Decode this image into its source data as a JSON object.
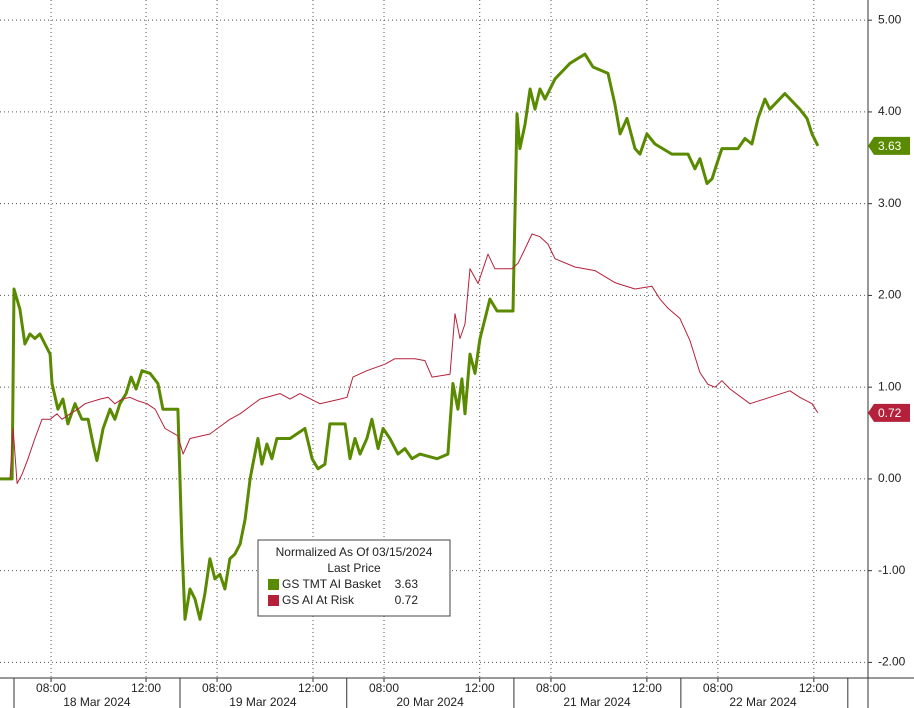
{
  "chart_data": {
    "type": "line",
    "legend_title": "Normalized As Of 03/15/2024",
    "legend_subtitle": "Last Price",
    "xlim": [
      0,
      36.55
    ],
    "ylim": [
      -2.17,
      5.22
    ],
    "yticks": [
      {
        "value": 5,
        "label": "5.00"
      },
      {
        "value": 4,
        "label": "4.00"
      },
      {
        "value": 3,
        "label": "3.00"
      },
      {
        "value": 2,
        "label": "2.00"
      },
      {
        "value": 1,
        "label": "1.00"
      },
      {
        "value": 0,
        "label": "0.00"
      },
      {
        "value": -1,
        "label": "-1.00"
      },
      {
        "value": -2,
        "label": "-2.00"
      }
    ],
    "xticks": [
      {
        "value": 2.15,
        "label": "08:00"
      },
      {
        "value": 6.15,
        "label": "12:00"
      },
      {
        "value": 9.14,
        "label": "08:00"
      },
      {
        "value": 13.18,
        "label": "12:00"
      },
      {
        "value": 16.17,
        "label": "08:00"
      },
      {
        "value": 20.2,
        "label": "12:00"
      },
      {
        "value": 23.2,
        "label": "08:00"
      },
      {
        "value": 27.24,
        "label": "12:00"
      },
      {
        "value": 30.23,
        "label": "08:00"
      },
      {
        "value": 34.27,
        "label": "12:00"
      }
    ],
    "day_boundaries": [
      0.59,
      7.58,
      14.6,
      21.64,
      28.67,
      35.7
    ],
    "date_ticks": [
      {
        "value": 4.08,
        "label": "18 Mar 2024"
      },
      {
        "value": 11.07,
        "label": "19 Mar 2024"
      },
      {
        "value": 18.11,
        "label": "20 Mar 2024"
      },
      {
        "value": 25.14,
        "label": "21 Mar 2024"
      },
      {
        "value": 32.13,
        "label": "22 Mar 2024"
      }
    ],
    "grid": true,
    "legend_position": "lower center",
    "series": [
      {
        "name": "GS TMT AI Basket",
        "color": "#5a8a00",
        "last_label": "3.63",
        "x": [
          0,
          0.51,
          0.59,
          0.84,
          1.05,
          1.26,
          1.47,
          1.68,
          1.89,
          2.11,
          2.19,
          2.44,
          2.65,
          2.86,
          3.16,
          3.45,
          3.71,
          3.92,
          4.08,
          4.34,
          4.63,
          4.84,
          5.05,
          5.31,
          5.52,
          5.73,
          5.98,
          6.32,
          6.65,
          6.86,
          7.49,
          7.66,
          7.79,
          8.0,
          8.21,
          8.42,
          8.63,
          8.84,
          9.05,
          9.26,
          9.47,
          9.68,
          9.89,
          10.11,
          10.32,
          10.53,
          10.65,
          10.86,
          11.03,
          11.24,
          11.45,
          11.66,
          12.21,
          12.84,
          13.14,
          13.39,
          13.68,
          13.89,
          14.53,
          14.74,
          14.95,
          15.16,
          15.45,
          15.66,
          15.92,
          16.13,
          16.42,
          16.76,
          17.05,
          17.35,
          17.68,
          18.4,
          18.86,
          19.07,
          19.28,
          19.45,
          19.58,
          19.79,
          20.0,
          20.21,
          20.42,
          20.63,
          20.93,
          21.6,
          21.77,
          21.89,
          22.11,
          22.32,
          22.53,
          22.74,
          22.95,
          23.37,
          24.0,
          24.63,
          24.97,
          25.6,
          25.89,
          26.11,
          26.4,
          26.74,
          26.95,
          27.24,
          27.58,
          28.29,
          28.97,
          29.26,
          29.47,
          29.77,
          29.98,
          30.19,
          30.4,
          31.07,
          31.37,
          31.66,
          31.92,
          32.21,
          32.42,
          33.05,
          33.68,
          33.98,
          34.19,
          34.44
        ],
        "values": [
          0,
          0,
          2.07,
          1.85,
          1.47,
          1.58,
          1.53,
          1.58,
          1.47,
          1.36,
          1.04,
          0.76,
          0.87,
          0.6,
          0.82,
          0.65,
          0.65,
          0.38,
          0.2,
          0.55,
          0.76,
          0.65,
          0.82,
          0.93,
          1.11,
          0.98,
          1.18,
          1.15,
          1.04,
          0.76,
          0.76,
          -0.71,
          -1.53,
          -1.2,
          -1.31,
          -1.53,
          -1.25,
          -0.87,
          -1.09,
          -1.04,
          -1.2,
          -0.87,
          -0.82,
          -0.71,
          -0.44,
          0,
          0.16,
          0.44,
          0.16,
          0.38,
          0.22,
          0.44,
          0.44,
          0.55,
          0.22,
          0.11,
          0.16,
          0.6,
          0.6,
          0.22,
          0.44,
          0.27,
          0.44,
          0.65,
          0.33,
          0.55,
          0.44,
          0.27,
          0.33,
          0.22,
          0.27,
          0.22,
          0.27,
          1.04,
          0.76,
          1.09,
          0.71,
          1.36,
          1.15,
          1.53,
          1.74,
          1.96,
          1.83,
          1.83,
          3.98,
          3.6,
          3.87,
          4.25,
          4.03,
          4.25,
          4.14,
          4.36,
          4.53,
          4.63,
          4.49,
          4.42,
          4.09,
          3.76,
          3.93,
          3.6,
          3.54,
          3.76,
          3.65,
          3.54,
          3.54,
          3.38,
          3.49,
          3.22,
          3.27,
          3.44,
          3.6,
          3.6,
          3.71,
          3.65,
          3.93,
          4.14,
          4.03,
          4.2,
          4.03,
          3.93,
          3.76,
          3.63
        ]
      },
      {
        "name": "GS AI At Risk",
        "color": "#b5213a",
        "last_label": "0.72",
        "x": [
          0.42,
          0.55,
          0.72,
          0.93,
          1.18,
          1.47,
          1.77,
          2.11,
          2.4,
          2.61,
          2.95,
          3.28,
          3.58,
          4.21,
          4.55,
          4.84,
          5.14,
          5.47,
          5.81,
          6.19,
          6.53,
          6.95,
          7.49,
          7.71,
          8.0,
          8.84,
          9.26,
          9.68,
          10.11,
          10.53,
          10.95,
          11.79,
          12.21,
          12.63,
          13.47,
          14.32,
          14.61,
          14.86,
          15.45,
          16.21,
          16.63,
          17.47,
          17.89,
          18.19,
          18.95,
          19.16,
          19.37,
          19.58,
          19.79,
          20.13,
          20.55,
          20.84,
          21.56,
          21.81,
          22.11,
          22.4,
          22.74,
          23.07,
          23.37,
          24.21,
          25.05,
          25.89,
          26.74,
          27.45,
          27.79,
          28.13,
          28.63,
          29.05,
          29.47,
          29.81,
          30.11,
          30.4,
          30.74,
          31.58,
          32.42,
          33.26,
          33.68,
          34.19,
          34.44
        ],
        "values": [
          0,
          0.55,
          -0.05,
          0.05,
          0.22,
          0.44,
          0.65,
          0.65,
          0.71,
          0.65,
          0.71,
          0.76,
          0.82,
          0.87,
          0.89,
          0.82,
          0.87,
          0.89,
          0.85,
          0.82,
          0.76,
          0.55,
          0.47,
          0.27,
          0.44,
          0.49,
          0.57,
          0.65,
          0.71,
          0.79,
          0.87,
          0.93,
          0.87,
          0.93,
          0.82,
          0.87,
          0.89,
          1.11,
          1.18,
          1.25,
          1.31,
          1.31,
          1.29,
          1.11,
          1.14,
          1.8,
          1.53,
          1.69,
          2.29,
          2.13,
          2.45,
          2.29,
          2.29,
          2.35,
          2.51,
          2.67,
          2.64,
          2.56,
          2.4,
          2.31,
          2.27,
          2.14,
          2.07,
          2.1,
          1.96,
          1.86,
          1.75,
          1.51,
          1.16,
          1.03,
          1.0,
          1.07,
          0.98,
          0.82,
          0.89,
          0.96,
          0.89,
          0.82,
          0.72
        ]
      }
    ]
  }
}
